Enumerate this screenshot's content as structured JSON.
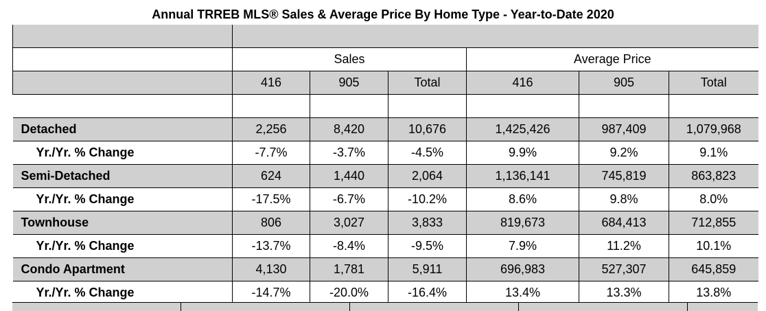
{
  "title": "Annual TRREB MLS® Sales & Average Price  By Home Type - Year-to-Date 2020",
  "groups": {
    "sales": "Sales",
    "avg_price": "Average Price"
  },
  "columns": [
    "416",
    "905",
    "Total",
    "416",
    "905",
    "Total"
  ],
  "rows": [
    {
      "label": "Detached",
      "kind": "main",
      "values": [
        "2,256",
        "8,420",
        "10,676",
        "1,425,426",
        "987,409",
        "1,079,968"
      ]
    },
    {
      "label": "Yr./Yr. % Change",
      "kind": "sub",
      "values": [
        "-7.7%",
        "-3.7%",
        "-4.5%",
        "9.9%",
        "9.2%",
        "9.1%"
      ]
    },
    {
      "label": "Semi-Detached",
      "kind": "main",
      "values": [
        "624",
        "1,440",
        "2,064",
        "1,136,141",
        "745,819",
        "863,823"
      ]
    },
    {
      "label": "Yr./Yr. % Change",
      "kind": "sub",
      "values": [
        "-17.5%",
        "-6.7%",
        "-10.2%",
        "8.6%",
        "9.8%",
        "8.0%"
      ]
    },
    {
      "label": "Townhouse",
      "kind": "main",
      "values": [
        "806",
        "3,027",
        "3,833",
        "819,673",
        "684,413",
        "712,855"
      ]
    },
    {
      "label": "Yr./Yr. % Change",
      "kind": "sub",
      "values": [
        "-13.7%",
        "-8.4%",
        "-9.5%",
        "7.9%",
        "11.2%",
        "10.1%"
      ]
    },
    {
      "label": "Condo Apartment",
      "kind": "main",
      "values": [
        "4,130",
        "1,781",
        "5,911",
        "696,983",
        "527,307",
        "645,859"
      ]
    },
    {
      "label": "Yr./Yr. % Change",
      "kind": "sub",
      "values": [
        "-14.7%",
        "-20.0%",
        "-16.4%",
        "13.4%",
        "13.3%",
        "13.8%"
      ]
    }
  ]
}
